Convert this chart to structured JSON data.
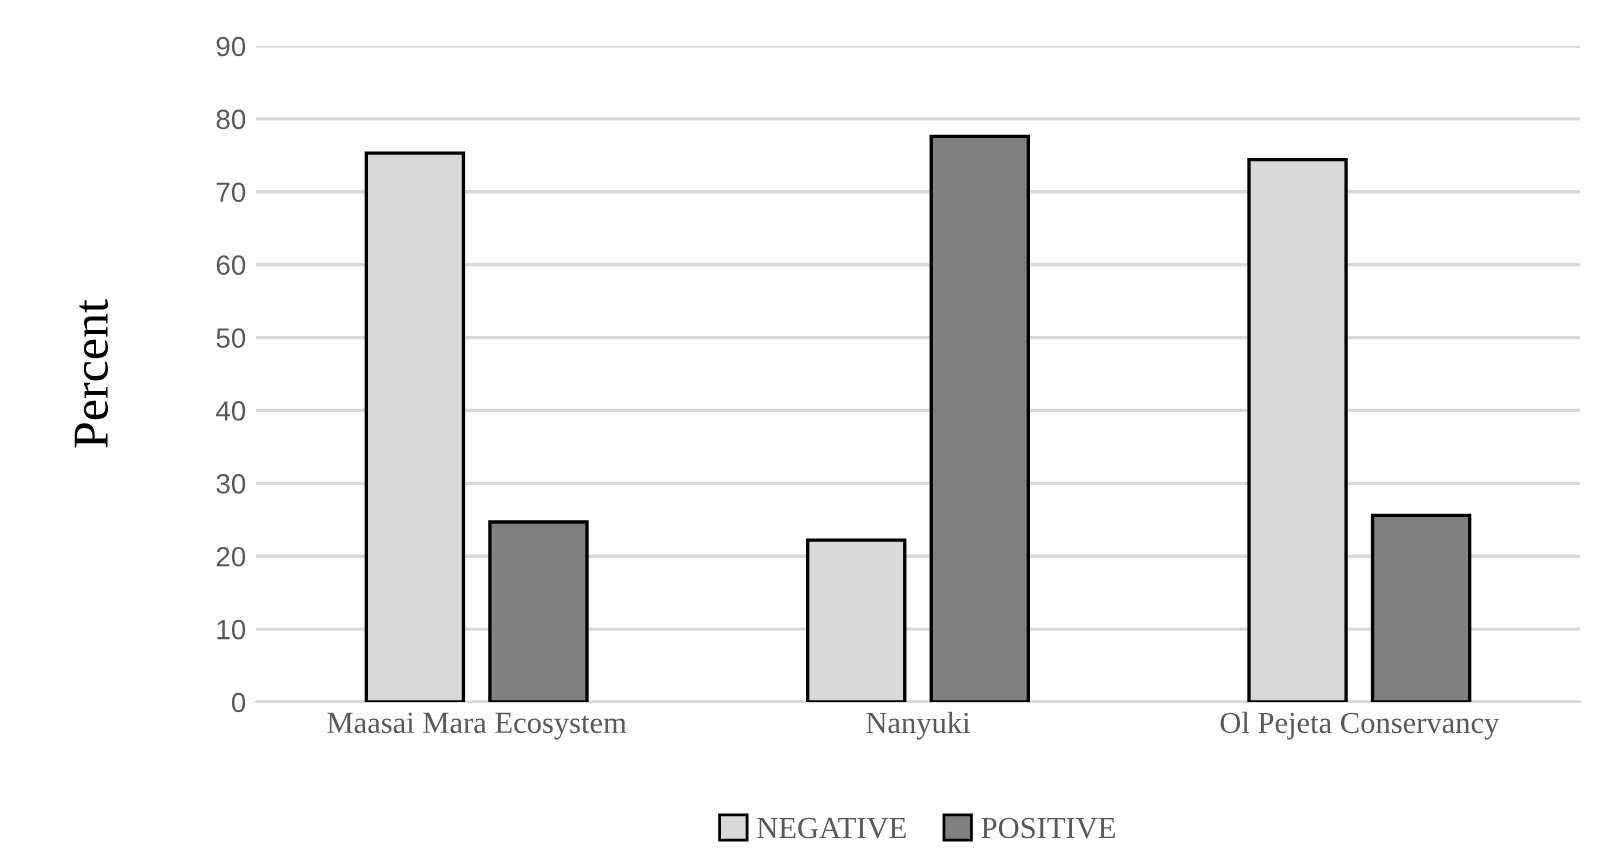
{
  "chart_data": {
    "type": "bar",
    "ylabel": "Percent",
    "categories": [
      "Maasai Mara Ecosystem",
      "Nanyuki",
      "Ol Pejeta Conservancy"
    ],
    "series": [
      {
        "name": "NEGATIVE",
        "color": "#d9d9d9",
        "values": [
          75.3,
          22.2,
          74.4
        ]
      },
      {
        "name": "POSITIVE",
        "color": "#808080",
        "values": [
          24.7,
          77.6,
          25.6
        ]
      }
    ],
    "ylim": [
      0,
      90
    ],
    "yticks": [
      0,
      10,
      20,
      30,
      40,
      50,
      60,
      70,
      80,
      90
    ],
    "grid": "y",
    "legend": "bottom"
  }
}
